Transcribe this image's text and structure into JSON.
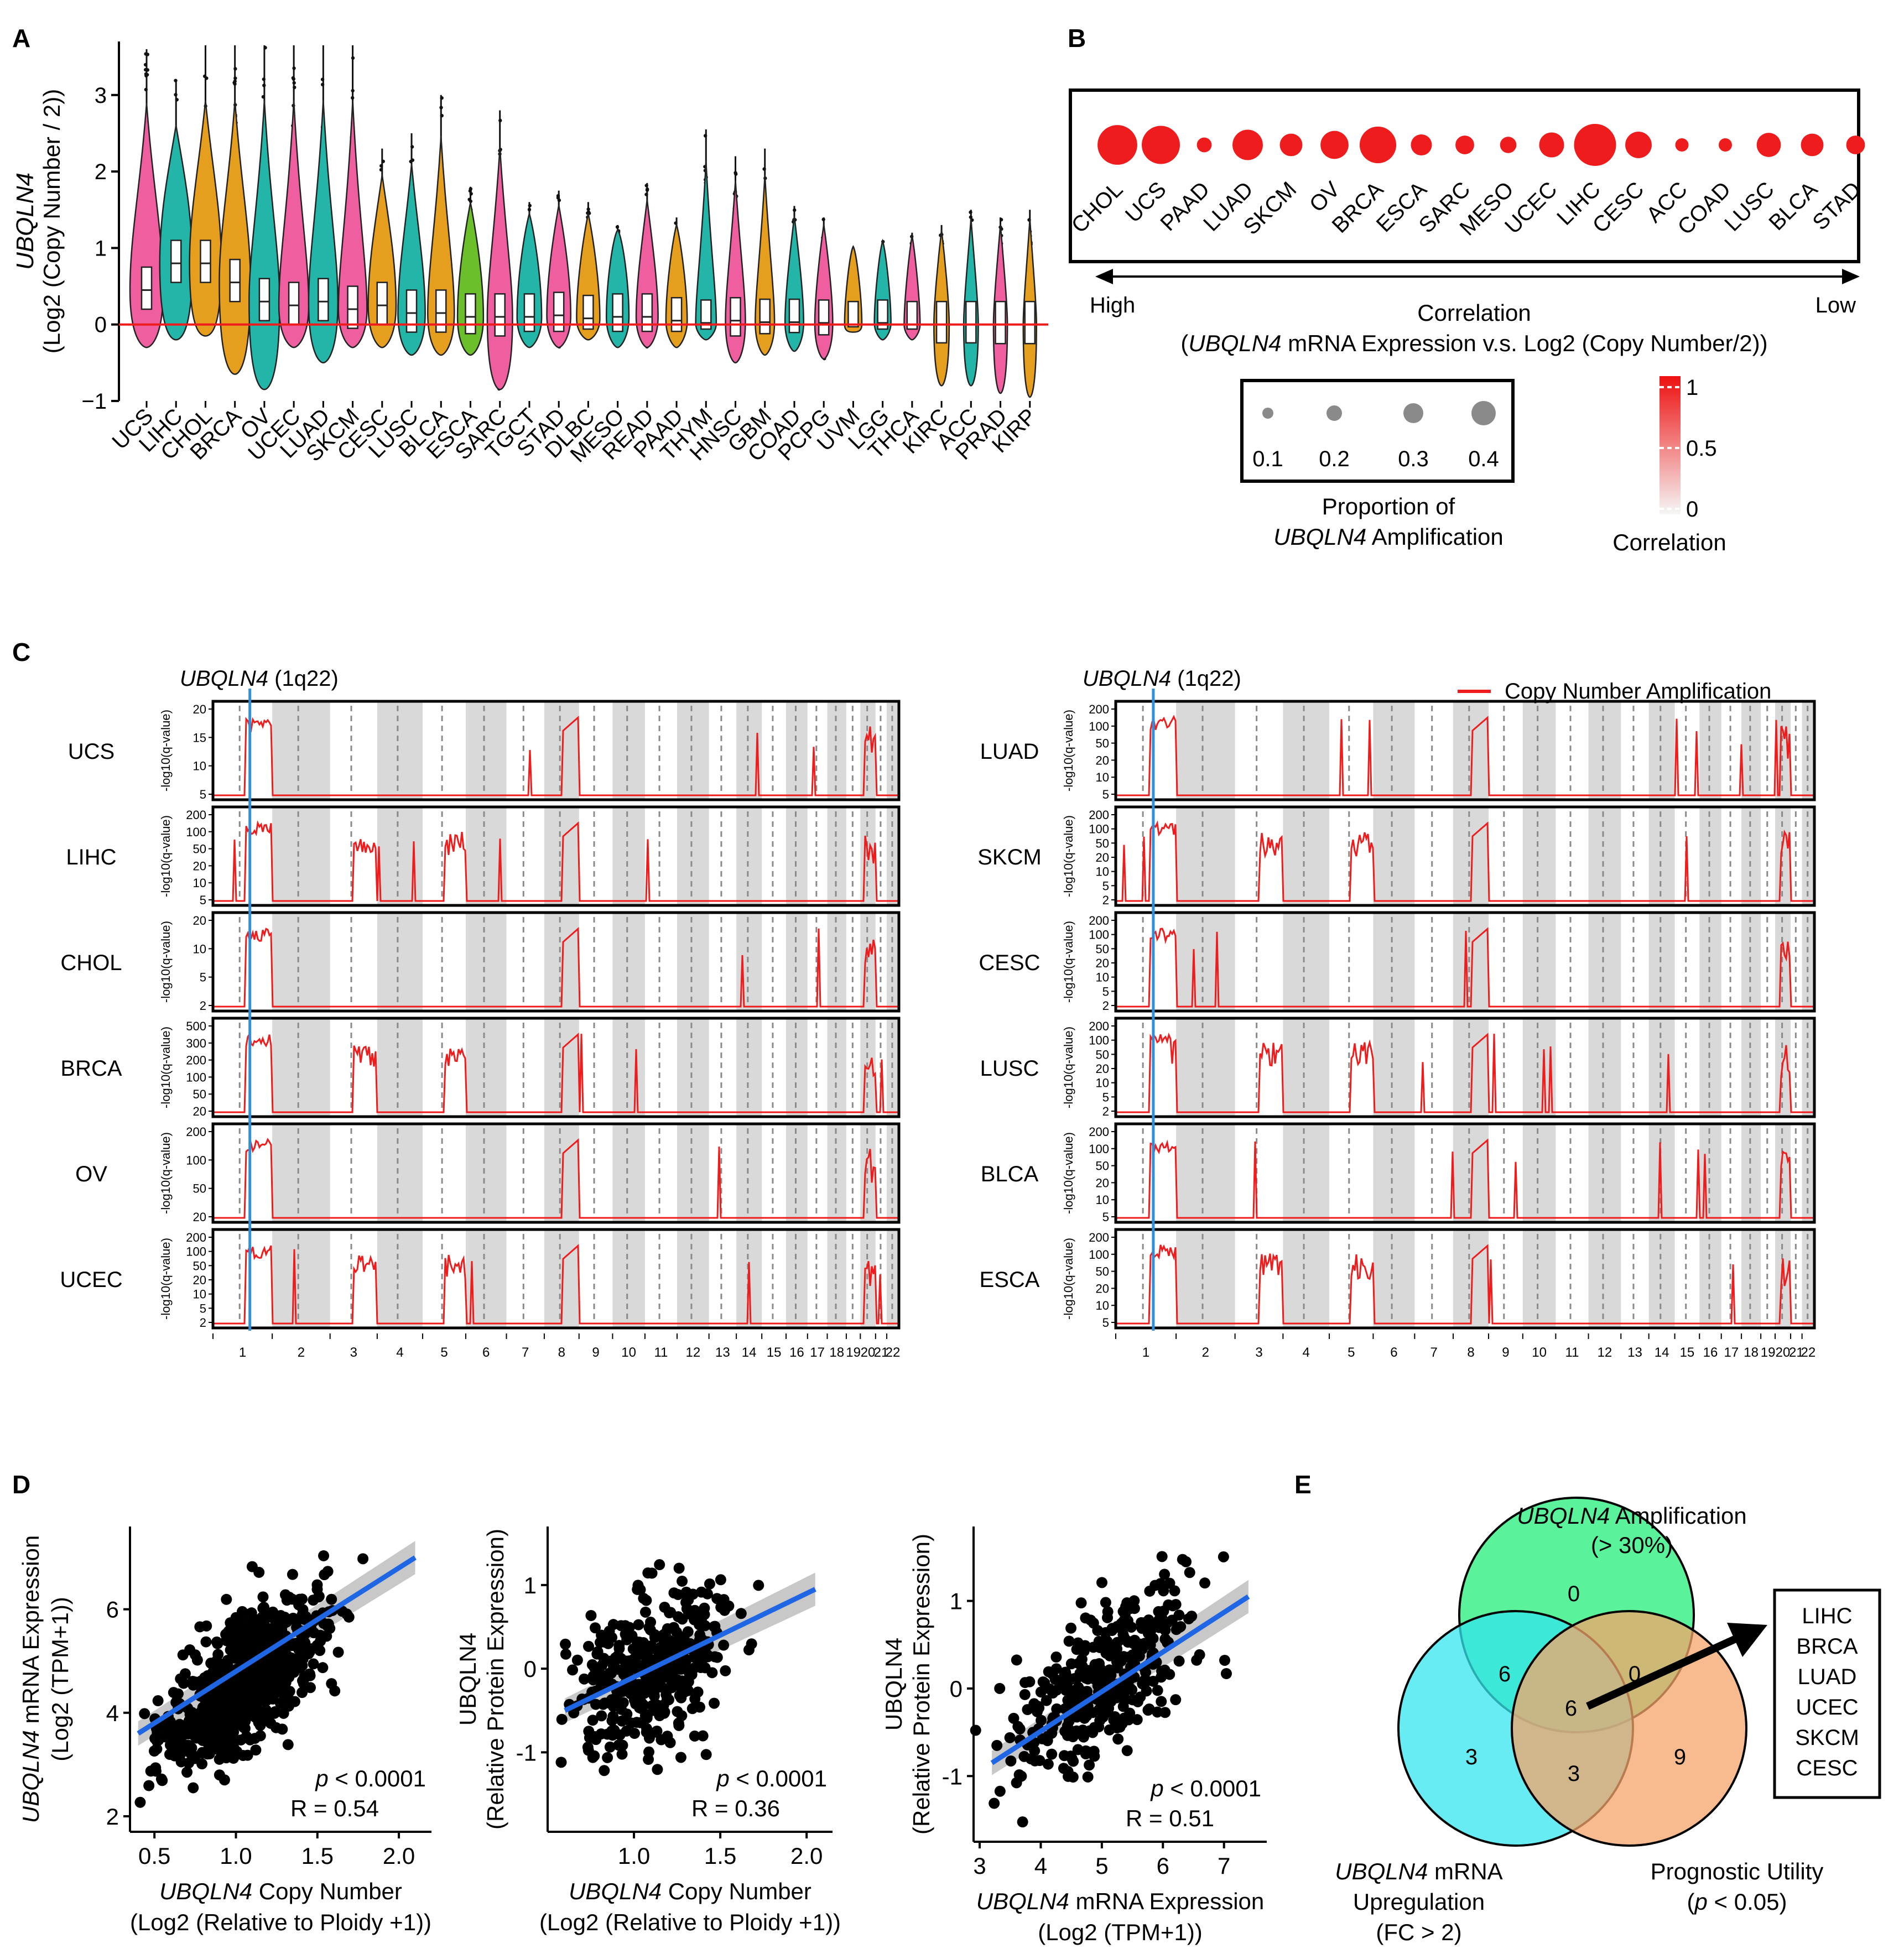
{
  "colors": {
    "red": "#ee1c1c",
    "blue": "#1f66e5",
    "lightblue": "#2f8fd8",
    "grey": "#d9d9d9",
    "highText": "#ee1c1c",
    "lowText": "#2045d6",
    "vennGreen": "#3df08a",
    "vennCyan": "#33e6ee",
    "vennOrange": "#f6a46a"
  },
  "panels": {
    "A": "A",
    "B": "B",
    "C": "C",
    "D": "D",
    "E": "E"
  },
  "chart_data": [
    {
      "id": "A",
      "type": "violin",
      "ylabel_gene": "UBQLN4",
      "ylabel_unit": "(Log2 (Copy Number / 2))",
      "ylim": [
        -1,
        3.7
      ],
      "yticks": [
        "−1",
        "0",
        "1",
        "2",
        "3"
      ],
      "ytick_values": [
        -1,
        0,
        1,
        2,
        3
      ],
      "reference_line": 0,
      "categories": [
        "UCS",
        "LIHC",
        "CHOL",
        "BRCA",
        "OV",
        "UCEC",
        "LUAD",
        "SKCM",
        "CESC",
        "LUSC",
        "BLCA",
        "ESCA",
        "SARC",
        "TGCT",
        "STAD",
        "DLBC",
        "MESO",
        "READ",
        "PAAD",
        "THYM",
        "HNSC",
        "GBM",
        "COAD",
        "PCPG",
        "UVM",
        "LGG",
        "THCA",
        "KIRC",
        "ACC",
        "PRAD",
        "KIRP"
      ],
      "max_values": [
        3.6,
        3.2,
        3.65,
        3.65,
        3.65,
        3.65,
        3.65,
        3.65,
        2.3,
        2.5,
        3.0,
        1.8,
        2.8,
        1.6,
        1.75,
        1.6,
        1.3,
        1.85,
        1.4,
        2.55,
        2.2,
        2.3,
        1.55,
        1.4,
        1.0,
        1.1,
        1.2,
        1.3,
        1.5,
        1.4,
        1.5
      ],
      "min_values": [
        -0.3,
        -0.2,
        -0.15,
        -0.65,
        -0.85,
        -0.3,
        -0.5,
        -0.3,
        -0.3,
        -0.4,
        -0.4,
        -0.4,
        -0.85,
        -0.3,
        -0.3,
        -0.2,
        -0.3,
        -0.3,
        -0.3,
        -0.2,
        -0.5,
        -0.4,
        -0.35,
        -0.45,
        -0.1,
        -0.2,
        -0.2,
        -0.8,
        -0.8,
        -0.9,
        -0.95
      ],
      "median_values": [
        0.45,
        0.8,
        0.8,
        0.55,
        0.3,
        0.25,
        0.3,
        0.2,
        0.25,
        0.15,
        0.15,
        0.1,
        0.1,
        0.1,
        0.12,
        0.08,
        0.1,
        0.1,
        0.05,
        0.02,
        0.05,
        0.03,
        0.03,
        0.02,
        0.0,
        0.02,
        0.0,
        0.0,
        0.0,
        0.0,
        0.0
      ],
      "violin_colors": [
        "#ef5fa0",
        "#22b5a8",
        "#e69e1e",
        "#e69e1e",
        "#22b5a8",
        "#ef5fa0",
        "#22b5a8",
        "#ef5fa0",
        "#e69e1e",
        "#22b5a8",
        "#e69e1e",
        "#6bbf2a",
        "#ef5fa0",
        "#22b5a8",
        "#ef5fa0",
        "#e69e1e",
        "#22b5a8",
        "#ef5fa0",
        "#e69e1e",
        "#22b5a8",
        "#ef5fa0",
        "#e69e1e",
        "#22b5a8",
        "#ef5fa0",
        "#e69e1e",
        "#22b5a8",
        "#ef5fa0",
        "#e69e1e",
        "#22b5a8",
        "#ef5fa0",
        "#e69e1e"
      ]
    },
    {
      "id": "B",
      "type": "bubble",
      "categories": [
        "CHOL",
        "UCS",
        "PAAD",
        "LUAD",
        "SKCM",
        "OV",
        "BRCA",
        "ESCA",
        "SARC",
        "MESO",
        "UCEC",
        "LIHC",
        "CESC",
        "ACC",
        "COAD",
        "LUSC",
        "BLCA",
        "STAD"
      ],
      "proportion_amplification": [
        0.42,
        0.4,
        0.1,
        0.3,
        0.2,
        0.27,
        0.38,
        0.18,
        0.15,
        0.12,
        0.23,
        0.45,
        0.25,
        0.08,
        0.08,
        0.22,
        0.2,
        0.15
      ],
      "arrow_left": "High",
      "arrow_right": "Low",
      "xlabel_line1": "Correlation",
      "xlabel_line2_pre": "(",
      "xlabel_line2_gene": "UBQLN4",
      "xlabel_line2_post": " mRNA Expression v.s. Log2 (Copy Number/2))",
      "size_legend": {
        "values": [
          "0.1",
          "0.2",
          "0.3",
          "0.4"
        ],
        "title_line1": "Proportion of",
        "title_gene": "UBQLN4",
        "title_line2_post": " Amplification"
      },
      "color_legend": {
        "ticks": [
          "1",
          "0.5",
          "0"
        ],
        "title": "Correlation"
      }
    },
    {
      "id": "C",
      "type": "line",
      "gene_label": "UBQLN4",
      "locus": "(1q22)",
      "legend": "Copy Number Amplification",
      "ylabel": "-log10(q-value)",
      "chromosomes": [
        "1",
        "2",
        "3",
        "4",
        "5",
        "6",
        "7",
        "8",
        "9",
        "10",
        "11",
        "12",
        "13",
        "14",
        "15",
        "16",
        "17",
        "18",
        "19",
        "20",
        "21",
        "22"
      ],
      "left_tracks": [
        {
          "name": "UCS",
          "yticks": [
            "20",
            "15",
            "10",
            "5"
          ]
        },
        {
          "name": "LIHC",
          "yticks": [
            "200",
            "100",
            "50",
            "20",
            "10",
            "5"
          ]
        },
        {
          "name": "CHOL",
          "yticks": [
            "20",
            "10",
            "5",
            "2"
          ]
        },
        {
          "name": "BRCA",
          "yticks": [
            "500",
            "300",
            "200",
            "100",
            "50",
            "20"
          ]
        },
        {
          "name": "OV",
          "yticks": [
            "200",
            "100",
            "50",
            "20"
          ]
        },
        {
          "name": "UCEC",
          "yticks": [
            "200",
            "100",
            "50",
            "20",
            "10",
            "5",
            "2"
          ]
        }
      ],
      "right_tracks": [
        {
          "name": "LUAD",
          "yticks": [
            "200",
            "100",
            "50",
            "20",
            "10",
            "5"
          ]
        },
        {
          "name": "SKCM",
          "yticks": [
            "200",
            "100",
            "50",
            "20",
            "10",
            "5",
            "2"
          ]
        },
        {
          "name": "CESC",
          "yticks": [
            "200",
            "100",
            "50",
            "20",
            "10",
            "5",
            "2"
          ]
        },
        {
          "name": "LUSC",
          "yticks": [
            "200",
            "100",
            "50",
            "20",
            "10",
            "5",
            "2"
          ]
        },
        {
          "name": "BLCA",
          "yticks": [
            "200",
            "100",
            "50",
            "20",
            "10",
            "5"
          ]
        },
        {
          "name": "ESCA",
          "yticks": [
            "200",
            "100",
            "50",
            "20",
            "10",
            "5"
          ]
        }
      ]
    },
    {
      "id": "D1",
      "type": "scatter",
      "xlabel_gene": "UBQLN4",
      "xlabel_post": " Copy Number",
      "xlabel_line2": "(Log2 (Relative to Ploidy +1))",
      "ylabel_gene": "UBQLN4",
      "ylabel_post": " mRNA Expression",
      "ylabel_line2": "(Log2 (TPM+1))",
      "xlim": [
        0.35,
        2.2
      ],
      "ylim": [
        1.7,
        7.6
      ],
      "xticks": [
        "0.5",
        "1.0",
        "1.5",
        "2.0"
      ],
      "xtick_values": [
        0.5,
        1.0,
        1.5,
        2.0
      ],
      "yticks": [
        "2",
        "4",
        "6"
      ],
      "ytick_values": [
        2,
        4,
        6
      ],
      "fit": {
        "x": [
          0.4,
          2.1
        ],
        "y": [
          3.6,
          7.0
        ]
      },
      "p_text": "p",
      "p_rest": " < 0.0001",
      "r_text": "R = 0.54",
      "n_points": 900,
      "center": [
        1.05,
        4.6
      ],
      "spread": [
        0.22,
        0.75
      ],
      "slope": 2.0
    },
    {
      "id": "D2",
      "type": "scatter",
      "xlabel_gene": "UBQLN4",
      "xlabel_post": " Copy Number",
      "xlabel_line2": "(Log2 (Relative to Ploidy +1))",
      "ylabel_gene": "UBQLN4",
      "ylabel_post": "",
      "ylabel_line1_alt": "(Relative Protein Expression)",
      "xlim": [
        0.5,
        2.15
      ],
      "ylim": [
        -1.95,
        1.7
      ],
      "xticks": [
        "1.0",
        "1.5",
        "2.0"
      ],
      "xtick_values": [
        1.0,
        1.5,
        2.0
      ],
      "yticks": [
        "-1",
        "0",
        "1"
      ],
      "ytick_values": [
        -1,
        0,
        1
      ],
      "fit": {
        "x": [
          0.6,
          2.05
        ],
        "y": [
          -0.5,
          0.95
        ]
      },
      "p_text": "p",
      "p_rest": " < 0.0001",
      "r_text": "R = 0.36",
      "n_points": 380,
      "center": [
        1.1,
        0.0
      ],
      "spread": [
        0.22,
        0.55
      ],
      "slope": 1.0
    },
    {
      "id": "D3",
      "type": "scatter",
      "xlabel_gene": "UBQLN4",
      "xlabel_post": " mRNA Expression",
      "xlabel_line2": "(Log2 (TPM+1))",
      "ylabel_gene": "UBQLN4",
      "ylabel_post": "",
      "ylabel_line1_alt": "(Relative Protein Expression)",
      "xlim": [
        2.9,
        7.7
      ],
      "ylim": [
        -1.75,
        1.85
      ],
      "xticks": [
        "3",
        "4",
        "5",
        "6",
        "7"
      ],
      "xtick_values": [
        3,
        4,
        5,
        6,
        7
      ],
      "yticks": [
        "-1",
        "0",
        "1"
      ],
      "ytick_values": [
        -1,
        0,
        1
      ],
      "fit": {
        "x": [
          3.2,
          7.4
        ],
        "y": [
          -0.85,
          1.05
        ]
      },
      "p_text": "p",
      "p_rest": " < 0.0001",
      "r_text": "R = 0.51",
      "n_points": 380,
      "center": [
        5.0,
        0.05
      ],
      "spread": [
        0.75,
        0.5
      ],
      "slope": 0.45
    },
    {
      "id": "E",
      "type": "venn",
      "set_top_gene": "UBQLN4",
      "set_top_post": " Amplification",
      "set_top_line2": "(> 30%)",
      "set_left_gene": "UBQLN4",
      "set_left_post": " mRNA",
      "set_left_line2": "Upregulation",
      "set_left_line3": "(FC > 2)",
      "set_right_line1": "Prognostic Utility",
      "set_right_line2_pre": "(",
      "set_right_line2_p": "p",
      "set_right_line2_post": " < 0.05)",
      "counts": {
        "top_only": "0",
        "left_only": "3",
        "right_only": "9",
        "top_left": "6",
        "top_right": "0",
        "left_right": "3",
        "all": "6"
      },
      "result_list": [
        "LIHC",
        "BRCA",
        "LUAD",
        "UCEC",
        "SKCM",
        "CESC"
      ]
    }
  ]
}
